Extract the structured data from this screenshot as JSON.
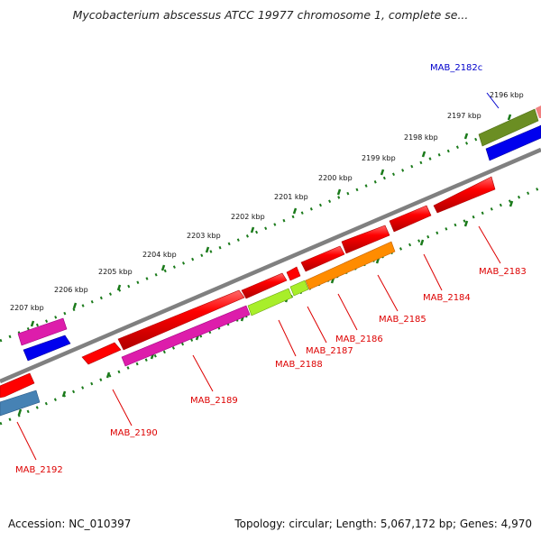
{
  "title": "Mycobacterium abscessus ATCC 19977 chromosome 1, complete se...",
  "accession": "Accession: NC_010397",
  "summary": "Topology: circular; Length: 5,067,172 bp; Genes: 4,970",
  "kbp_labels": [
    "2207 kbp",
    "2206 kbp",
    "2205 kbp",
    "2204 kbp",
    "2203 kbp",
    "2202 kbp",
    "2201 kbp",
    "2200 kbp",
    "2199 kbp",
    "2198 kbp",
    "2197 kbp",
    "2196 kbp"
  ],
  "gene_labels": [
    "MAB_2182c",
    "MAB_2183",
    "MAB_2184",
    "MAB_2185",
    "MAB_2186",
    "MAB_2187",
    "MAB_2188",
    "MAB_2189",
    "MAB_2190",
    "MAB_2192"
  ],
  "colors": {
    "forward_gene": "#ff0000",
    "reverse_label": "#0000cc",
    "backbone": "#808080",
    "tick": "#1a7a1a"
  }
}
